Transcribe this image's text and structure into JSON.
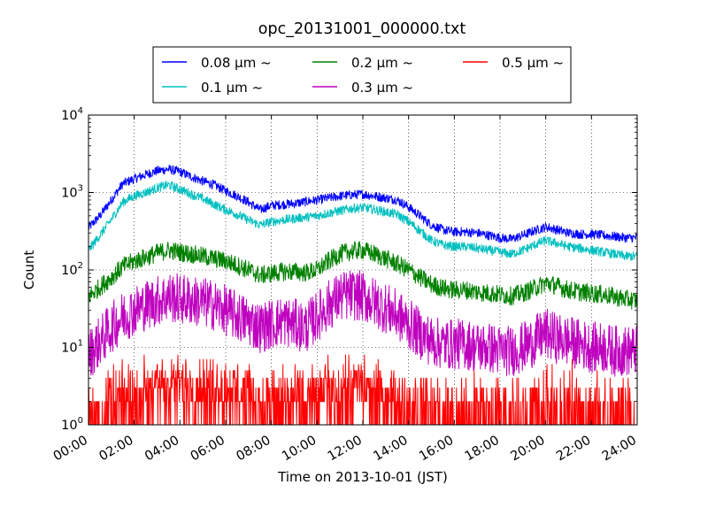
{
  "chart_data": {
    "type": "line",
    "title": "opc_20131001_000000.txt",
    "xlabel": "Time on 2013-10-01 (JST)",
    "ylabel": "Count",
    "x_ticks": [
      "00:00",
      "02:00",
      "04:00",
      "06:00",
      "08:00",
      "10:00",
      "12:00",
      "14:00",
      "16:00",
      "18:00",
      "20:00",
      "22:00",
      "24:00"
    ],
    "x_range_hours": [
      0,
      24
    ],
    "y_scale": "log",
    "ylim": [
      1,
      10000
    ],
    "y_ticks": [
      {
        "base": "10",
        "exp": "0"
      },
      {
        "base": "10",
        "exp": "1"
      },
      {
        "base": "10",
        "exp": "2"
      },
      {
        "base": "10",
        "exp": "3"
      },
      {
        "base": "10",
        "exp": "4"
      }
    ],
    "grid": true,
    "legend_position": "top",
    "legend_columns": 3,
    "series": [
      {
        "name": "0.08 μm ~",
        "color": "#0000ff",
        "noise": 0.06,
        "x": [
          0,
          0.5,
          1,
          1.5,
          2,
          2.5,
          3,
          3.5,
          4,
          4.5,
          5,
          5.5,
          6,
          6.5,
          7,
          7.5,
          8,
          8.5,
          9,
          9.5,
          10,
          10.5,
          11,
          11.5,
          12,
          12.5,
          13,
          13.5,
          14,
          14.5,
          15,
          15.5,
          16,
          16.5,
          17,
          17.5,
          18,
          18.5,
          19,
          19.5,
          20,
          20.5,
          21,
          21.5,
          22,
          22.5,
          23,
          23.5,
          24
        ],
        "y": [
          350,
          500,
          800,
          1300,
          1500,
          1700,
          1900,
          2000,
          1850,
          1600,
          1400,
          1250,
          1050,
          900,
          750,
          600,
          680,
          700,
          720,
          760,
          800,
          850,
          900,
          930,
          950,
          900,
          850,
          800,
          650,
          500,
          380,
          330,
          310,
          310,
          300,
          280,
          260,
          250,
          280,
          320,
          360,
          330,
          300,
          290,
          290,
          280,
          270,
          260,
          260
        ]
      },
      {
        "name": "0.1 μm ~",
        "color": "#00bfbf",
        "noise": 0.06,
        "x": [
          0,
          0.5,
          1,
          1.5,
          2,
          2.5,
          3,
          3.5,
          4,
          4.5,
          5,
          5.5,
          6,
          6.5,
          7,
          7.5,
          8,
          8.5,
          9,
          9.5,
          10,
          10.5,
          11,
          11.5,
          12,
          12.5,
          13,
          13.5,
          14,
          14.5,
          15,
          15.5,
          16,
          16.5,
          17,
          17.5,
          18,
          18.5,
          19,
          19.5,
          20,
          20.5,
          21,
          21.5,
          22,
          22.5,
          23,
          23.5,
          24
        ],
        "y": [
          180,
          280,
          450,
          750,
          900,
          1000,
          1150,
          1250,
          1100,
          950,
          830,
          700,
          600,
          520,
          440,
          380,
          420,
          440,
          460,
          480,
          500,
          540,
          580,
          620,
          640,
          600,
          560,
          520,
          420,
          320,
          240,
          210,
          200,
          200,
          190,
          180,
          170,
          160,
          180,
          210,
          240,
          220,
          200,
          190,
          180,
          170,
          160,
          150,
          150
        ]
      },
      {
        "name": "0.2 μm ~",
        "color": "#008000",
        "noise": 0.12,
        "x": [
          0,
          0.5,
          1,
          1.5,
          2,
          2.5,
          3,
          3.5,
          4,
          4.5,
          5,
          5.5,
          6,
          6.5,
          7,
          7.5,
          8,
          8.5,
          9,
          9.5,
          10,
          10.5,
          11,
          11.5,
          12,
          12.5,
          13,
          13.5,
          14,
          14.5,
          15,
          15.5,
          16,
          16.5,
          17,
          17.5,
          18,
          18.5,
          19,
          19.5,
          20,
          20.5,
          21,
          21.5,
          22,
          22.5,
          23,
          23.5,
          24
        ],
        "y": [
          45,
          60,
          80,
          110,
          130,
          145,
          165,
          180,
          170,
          160,
          150,
          140,
          130,
          115,
          100,
          85,
          90,
          95,
          95,
          92,
          100,
          130,
          160,
          175,
          180,
          160,
          140,
          120,
          100,
          80,
          65,
          58,
          55,
          55,
          52,
          50,
          48,
          46,
          50,
          58,
          68,
          62,
          55,
          52,
          50,
          48,
          45,
          42,
          40
        ]
      },
      {
        "name": "0.3 μm ~",
        "color": "#bf00bf",
        "noise": 0.33,
        "x": [
          0,
          0.5,
          1,
          1.5,
          2,
          2.5,
          3,
          3.5,
          4,
          4.5,
          5,
          5.5,
          6,
          6.5,
          7,
          7.5,
          8,
          8.5,
          9,
          9.5,
          10,
          10.5,
          11,
          11.5,
          12,
          12.5,
          13,
          13.5,
          14,
          14.5,
          15,
          15.5,
          16,
          16.5,
          17,
          17.5,
          18,
          18.5,
          19,
          19.5,
          20,
          20.5,
          21,
          21.5,
          22,
          22.5,
          23,
          23.5,
          24
        ],
        "y": [
          8,
          12,
          18,
          25,
          30,
          35,
          40,
          45,
          42,
          40,
          38,
          35,
          30,
          25,
          22,
          18,
          20,
          22,
          20,
          18,
          25,
          35,
          45,
          48,
          45,
          38,
          32,
          26,
          20,
          15,
          12,
          11,
          11,
          11,
          10,
          10,
          9,
          9,
          10,
          12,
          15,
          13,
          12,
          11,
          10,
          10,
          9,
          9,
          9
        ]
      },
      {
        "name": "0.5 μm ~",
        "color": "#ff0000",
        "noise": 0,
        "x": [
          0,
          1,
          2,
          3,
          4,
          5,
          6,
          7,
          8,
          9,
          10,
          11,
          12,
          13,
          14,
          15,
          16,
          17,
          18,
          19,
          20,
          21,
          22,
          23,
          24
        ],
        "y": [
          1.2,
          1.8,
          2.5,
          3.2,
          3.5,
          3.3,
          3,
          2.4,
          2,
          1.8,
          2.2,
          2.8,
          3,
          2.5,
          2,
          1.6,
          1.4,
          1.3,
          1.3,
          1.4,
          1.7,
          1.5,
          1.4,
          1.3,
          1.3
        ]
      }
    ]
  }
}
